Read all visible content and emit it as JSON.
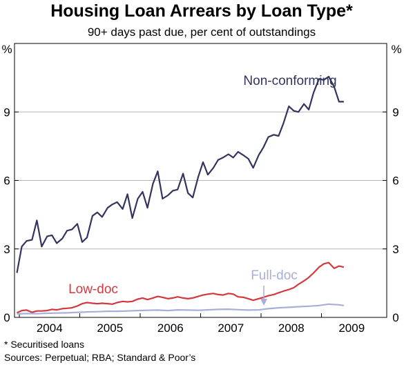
{
  "chart_data": {
    "type": "line",
    "title": "Housing Loan Arrears by Loan Type*",
    "subtitle": "90+ days past due, per cent of outstandings",
    "ylabel_left": "%",
    "ylabel_right": "%",
    "ylim": [
      0,
      12
    ],
    "yticks": [
      0,
      3,
      6,
      9
    ],
    "xlim": [
      2003.42,
      2009.58
    ],
    "xtick_labels": [
      "2004",
      "2005",
      "2006",
      "2007",
      "2008",
      "2009"
    ],
    "xtick_label_positions": [
      2004.0,
      2005.0,
      2006.0,
      2007.0,
      2008.0,
      2009.0
    ],
    "year_boundaries": [
      2003.5,
      2004.5,
      2005.5,
      2006.5,
      2007.5,
      2008.5
    ],
    "grid": true,
    "series": [
      {
        "name": "Non-conforming",
        "color": "#33335f",
        "x": [
          2003.46,
          2003.54,
          2003.62,
          2003.71,
          2003.79,
          2003.87,
          2003.96,
          2004.04,
          2004.12,
          2004.21,
          2004.29,
          2004.37,
          2004.46,
          2004.54,
          2004.62,
          2004.71,
          2004.79,
          2004.87,
          2004.96,
          2005.04,
          2005.12,
          2005.21,
          2005.29,
          2005.37,
          2005.46,
          2005.54,
          2005.62,
          2005.71,
          2005.79,
          2005.87,
          2005.96,
          2006.04,
          2006.12,
          2006.21,
          2006.29,
          2006.37,
          2006.46,
          2006.54,
          2006.62,
          2006.71,
          2006.79,
          2006.87,
          2006.96,
          2007.04,
          2007.12,
          2007.21,
          2007.29,
          2007.37,
          2007.46,
          2007.54,
          2007.62,
          2007.71,
          2007.79,
          2007.87,
          2007.96,
          2008.04,
          2008.12,
          2008.21,
          2008.29,
          2008.37,
          2008.46,
          2008.54,
          2008.62,
          2008.71,
          2008.79,
          2008.87
        ],
        "values": [
          1.95,
          3.1,
          3.35,
          3.4,
          4.25,
          3.1,
          3.55,
          3.6,
          3.25,
          3.45,
          3.8,
          3.85,
          4.1,
          3.3,
          3.5,
          4.45,
          4.6,
          4.4,
          4.8,
          4.95,
          5.05,
          4.75,
          5.4,
          4.35,
          5.2,
          5.5,
          4.8,
          5.85,
          6.4,
          5.2,
          5.35,
          5.55,
          5.6,
          6.3,
          5.45,
          5.25,
          6.15,
          6.8,
          6.25,
          6.55,
          6.9,
          7.0,
          7.15,
          7.0,
          7.25,
          7.1,
          6.95,
          6.55,
          7.1,
          7.45,
          7.9,
          8.0,
          7.95,
          8.5,
          9.25,
          9.05,
          9.0,
          9.35,
          9.1,
          9.85,
          10.45,
          10.4,
          10.55,
          10.1,
          9.45,
          9.45
        ]
      },
      {
        "name": "Low-doc",
        "color": "#d4373c",
        "x": [
          2003.46,
          2003.54,
          2003.62,
          2003.71,
          2003.79,
          2003.87,
          2003.96,
          2004.04,
          2004.12,
          2004.21,
          2004.29,
          2004.37,
          2004.46,
          2004.54,
          2004.62,
          2004.71,
          2004.79,
          2004.87,
          2004.96,
          2005.04,
          2005.12,
          2005.21,
          2005.29,
          2005.37,
          2005.46,
          2005.54,
          2005.62,
          2005.71,
          2005.79,
          2005.87,
          2005.96,
          2006.04,
          2006.12,
          2006.21,
          2006.29,
          2006.37,
          2006.46,
          2006.54,
          2006.62,
          2006.71,
          2006.79,
          2006.87,
          2006.96,
          2007.04,
          2007.12,
          2007.21,
          2007.29,
          2007.37,
          2007.46,
          2007.54,
          2007.62,
          2007.71,
          2007.79,
          2007.87,
          2007.96,
          2008.04,
          2008.12,
          2008.21,
          2008.29,
          2008.37,
          2008.46,
          2008.54,
          2008.62,
          2008.71,
          2008.79,
          2008.87
        ],
        "values": [
          0.2,
          0.3,
          0.32,
          0.22,
          0.28,
          0.28,
          0.3,
          0.35,
          0.33,
          0.38,
          0.4,
          0.42,
          0.5,
          0.6,
          0.65,
          0.62,
          0.6,
          0.62,
          0.6,
          0.58,
          0.65,
          0.7,
          0.68,
          0.7,
          0.8,
          0.85,
          0.78,
          0.85,
          0.92,
          0.88,
          0.82,
          0.85,
          0.9,
          0.85,
          0.82,
          0.85,
          0.92,
          0.98,
          1.02,
          1.05,
          1.0,
          0.98,
          1.05,
          1.02,
          0.9,
          0.88,
          0.82,
          0.75,
          0.82,
          0.88,
          0.95,
          1.0,
          1.08,
          1.15,
          1.22,
          1.3,
          1.45,
          1.6,
          1.75,
          1.95,
          2.2,
          2.35,
          2.4,
          2.15,
          2.25,
          2.2
        ]
      },
      {
        "name": "Full-doc",
        "color": "#a9aed9",
        "x": [
          2003.46,
          2003.62,
          2003.79,
          2003.96,
          2004.12,
          2004.29,
          2004.46,
          2004.62,
          2004.79,
          2004.96,
          2005.12,
          2005.29,
          2005.46,
          2005.62,
          2005.79,
          2005.96,
          2006.12,
          2006.29,
          2006.46,
          2006.62,
          2006.79,
          2006.96,
          2007.12,
          2007.29,
          2007.46,
          2007.62,
          2007.79,
          2007.96,
          2008.12,
          2008.29,
          2008.46,
          2008.62,
          2008.79,
          2008.87
        ],
        "values": [
          0.15,
          0.17,
          0.16,
          0.18,
          0.19,
          0.2,
          0.22,
          0.24,
          0.25,
          0.27,
          0.27,
          0.28,
          0.3,
          0.31,
          0.32,
          0.3,
          0.33,
          0.32,
          0.31,
          0.33,
          0.35,
          0.36,
          0.34,
          0.32,
          0.33,
          0.38,
          0.42,
          0.44,
          0.47,
          0.49,
          0.52,
          0.58,
          0.55,
          0.52
        ]
      }
    ],
    "annotations": [
      {
        "text": "Non-conforming",
        "series": "Non-conforming"
      },
      {
        "text": "Low-doc",
        "series": "Low-doc"
      },
      {
        "text": "Full-doc",
        "series": "Full-doc"
      }
    ],
    "footnotes": [
      "*   Securitised loans",
      "Sources: Perpetual; RBA; Standard & Poor’s"
    ]
  }
}
